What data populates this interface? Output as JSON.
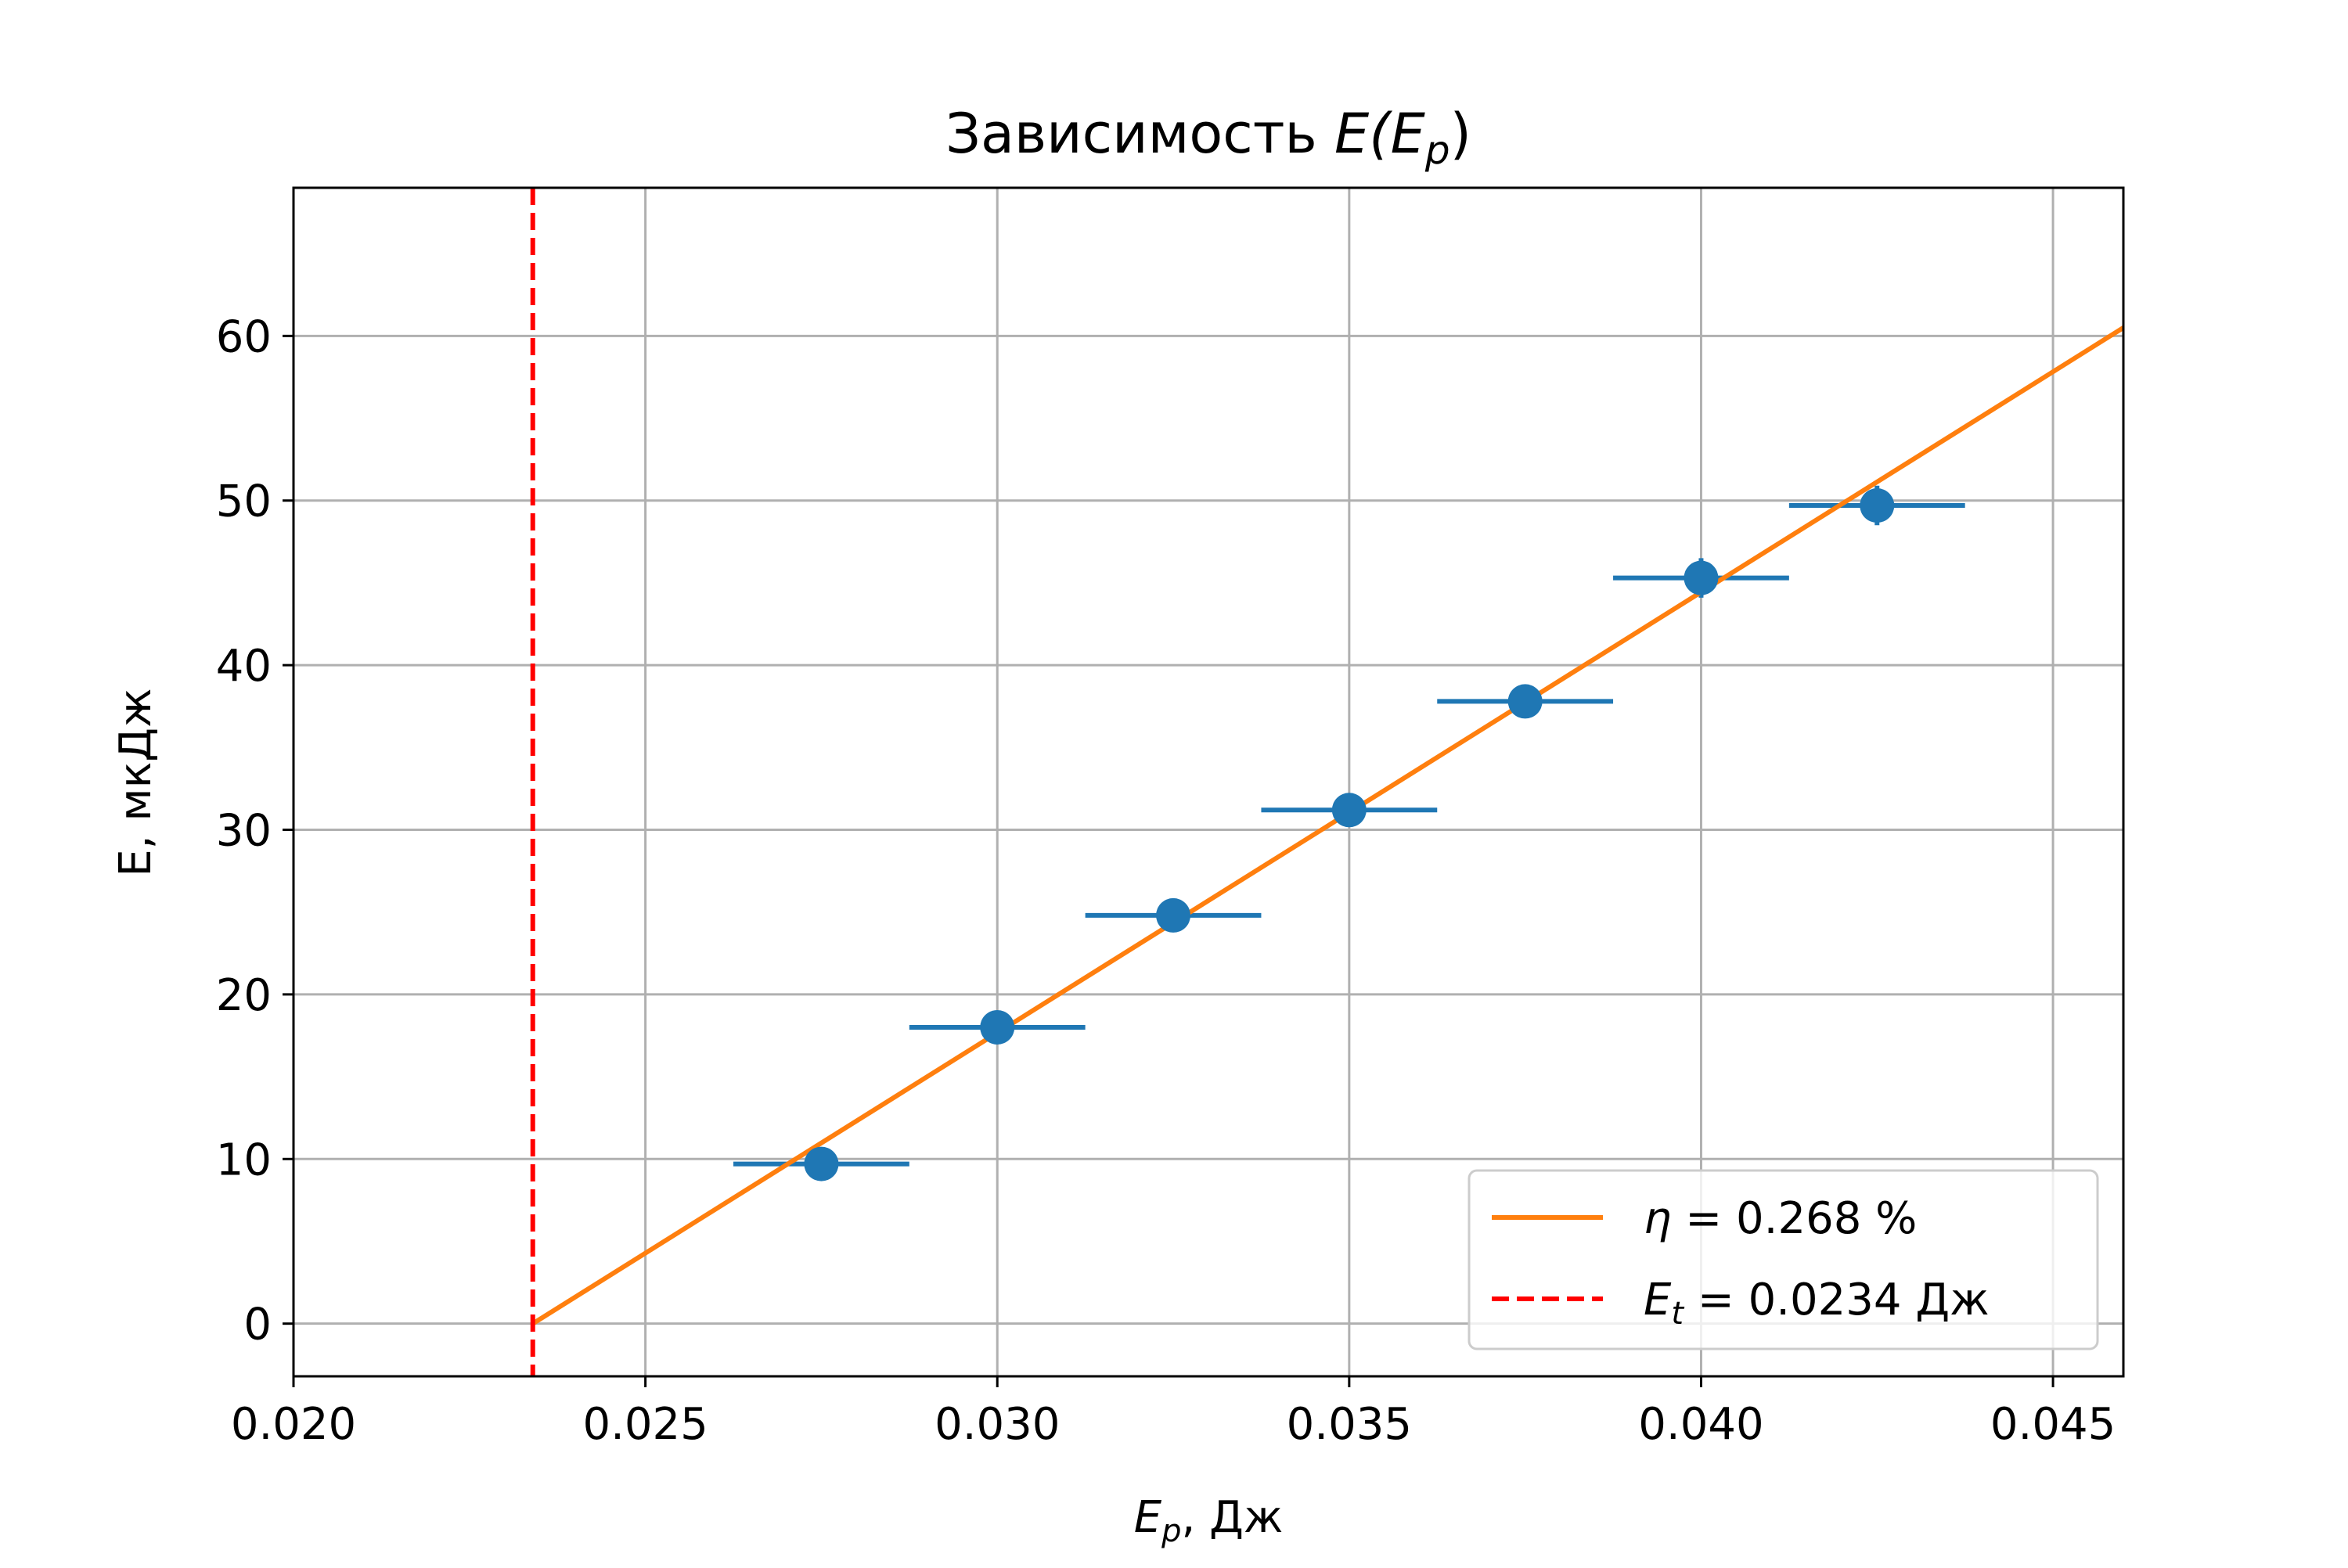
{
  "chart_data": {
    "type": "scatter",
    "title_prefix": "Зависимость ",
    "title_math": "E(E",
    "title_sub": "p",
    "title_suffix": ")",
    "xlabel_main": "E",
    "xlabel_sub": "p",
    "xlabel_rest": ", Дж",
    "ylabel": "E, мкДж",
    "xlim": [
      0.02,
      0.046
    ],
    "ylim": [
      -3.2,
      69
    ],
    "xticks": [
      "0.020",
      "0.025",
      "0.030",
      "0.035",
      "0.040",
      "0.045"
    ],
    "xtick_values": [
      0.02,
      0.025,
      0.03,
      0.035,
      0.04,
      0.045
    ],
    "yticks": [
      "0",
      "10",
      "20",
      "30",
      "40",
      "50",
      "60"
    ],
    "ytick_values": [
      0,
      10,
      20,
      30,
      40,
      50,
      60
    ],
    "grid": true,
    "legend_placement": "lower-right",
    "series": [
      {
        "kind": "errorbar",
        "color": "#1f77b4",
        "x": [
          0.0275,
          0.03,
          0.0325,
          0.035,
          0.0375,
          0.04,
          0.0425
        ],
        "y": [
          9.7,
          18.0,
          24.8,
          31.2,
          37.8,
          45.3,
          49.7
        ],
        "xerr": 0.00125,
        "yerr": [
          0.5,
          0.5,
          0.5,
          0.5,
          0.7,
          1.2,
          1.2
        ]
      },
      {
        "kind": "fit-line",
        "color": "#ff7f0e",
        "legend_math": "η",
        "legend_text": " = 0.268 %",
        "x": [
          0.0234,
          0.046
        ],
        "y": [
          0.0,
          60.5
        ]
      },
      {
        "kind": "threshold-line",
        "color": "#ff0000",
        "legend_math": "E",
        "legend_sub": "t",
        "legend_text": " = 0.0234 Дж",
        "x": 0.0234
      }
    ]
  }
}
